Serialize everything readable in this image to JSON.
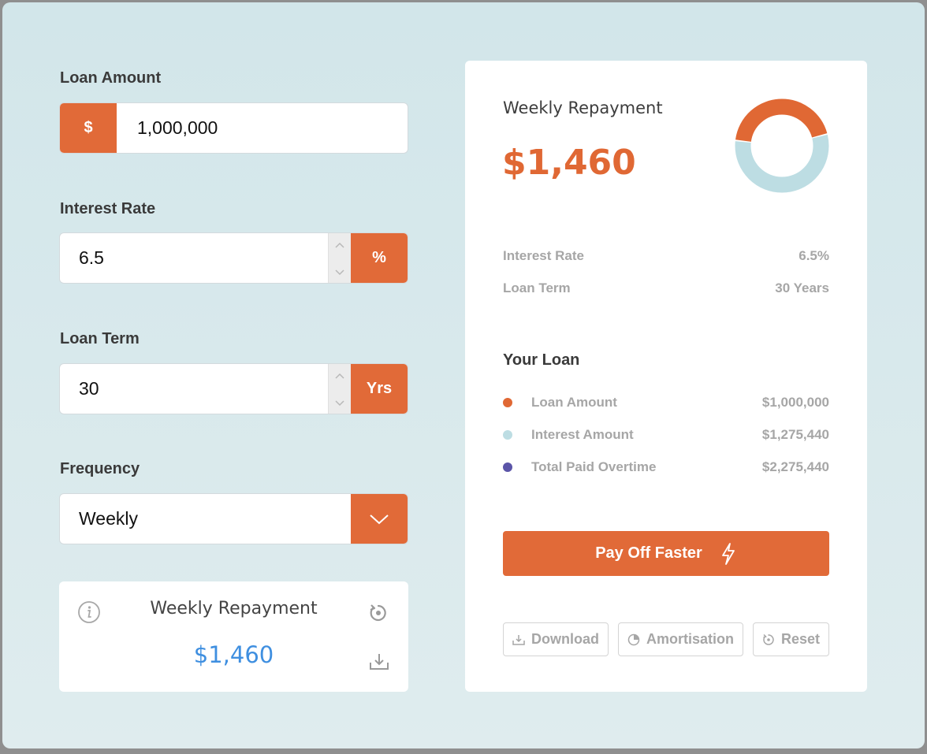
{
  "form": {
    "loan_amount": {
      "label": "Loan Amount",
      "prefix": "$",
      "value": "1,000,000"
    },
    "interest_rate": {
      "label": "Interest Rate",
      "value": "6.5",
      "suffix": "%"
    },
    "loan_term": {
      "label": "Loan Term",
      "value": "30",
      "suffix": "Yrs"
    },
    "frequency": {
      "label": "Frequency",
      "selected": "Weekly"
    }
  },
  "summary": {
    "title": "Weekly Repayment",
    "value": "$1,460",
    "icons": [
      "info-icon",
      "reset-icon",
      "download-icon"
    ]
  },
  "result": {
    "title": "Weekly Repayment",
    "amount": "$1,460",
    "rate": {
      "label": "Interest Rate",
      "value": "6.5%"
    },
    "term": {
      "label": "Loan Term",
      "value": "30 Years"
    },
    "section_title": "Your Loan",
    "legend": [
      {
        "label": "Loan Amount",
        "value": "$1,000,000",
        "color": "#e06834"
      },
      {
        "label": "Interest Amount",
        "value": "$1,275,440",
        "color": "#bddde3"
      },
      {
        "label": "Total Paid Overtime",
        "value": "$2,275,440",
        "color": "#5b55a8"
      }
    ],
    "donut": {
      "loan_fraction": 0.44,
      "interest_fraction": 0.56,
      "loan_color": "#e06834",
      "interest_color": "#bddde3"
    },
    "payoff_label": "Pay Off Faster",
    "buttons": {
      "download": "Download",
      "amortisation": "Amortisation",
      "reset": "Reset"
    }
  },
  "colors": {
    "accent": "#e16a38",
    "summary_value": "#3f8fe0"
  }
}
